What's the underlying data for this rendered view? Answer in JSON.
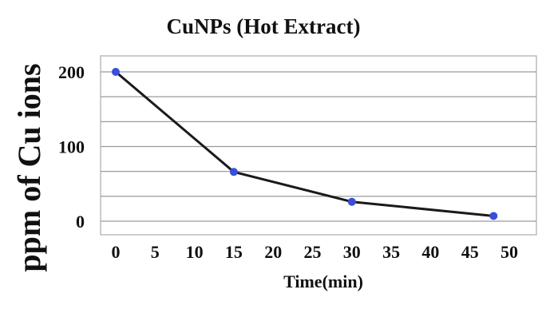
{
  "chart_data": {
    "type": "line",
    "title": "CuNPs (Hot Extract)",
    "xlabel": "Time(min)",
    "ylabel": "ppm of Cu ions",
    "x": [
      0,
      15,
      30,
      48
    ],
    "series": [
      {
        "values": [
          200,
          66,
          26,
          7
        ]
      }
    ],
    "xlim": [
      0,
      50
    ],
    "ylim": [
      0,
      200
    ],
    "x_ticks": [
      "0",
      "5",
      "10",
      "15",
      "20",
      "25",
      "30",
      "35",
      "40",
      "45",
      "50"
    ],
    "y_ticks": [
      "200",
      "100",
      "0"
    ],
    "y_tick_values": [
      200,
      100,
      0
    ],
    "horizontal_gridlines": [
      0,
      33.3,
      66.7,
      100,
      133.3,
      166.7,
      200
    ],
    "grid": "horizontal",
    "legend": "none",
    "colors": {
      "line": "#1a1a1a",
      "marker": "#3a4fd8",
      "grid": "#9a9a9a",
      "frame": "#bcbcbc"
    }
  }
}
